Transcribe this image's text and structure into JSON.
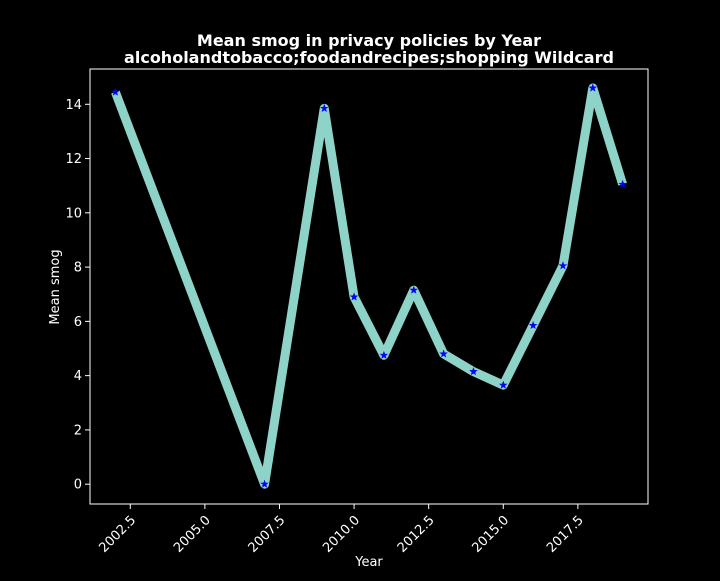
{
  "chart_data": {
    "type": "line",
    "title": "Mean smog in privacy policies by Year",
    "subtitle": "alcoholandtobacco;foodandrecipes;shopping Wildcard",
    "xlabel": "Year",
    "ylabel": "Mean smog",
    "xlim": [
      2001.15,
      2019.85
    ],
    "ylim": [
      -0.73,
      15.3
    ],
    "x_ticks": [
      "2002.5",
      "2005.0",
      "2007.5",
      "2010.0",
      "2012.5",
      "2015.0",
      "2017.5"
    ],
    "x_tick_values": [
      2002.5,
      2005.0,
      2007.5,
      2010.0,
      2012.5,
      2015.0,
      2017.5
    ],
    "y_ticks": [
      "0",
      "2",
      "4",
      "6",
      "8",
      "10",
      "12",
      "14"
    ],
    "y_tick_values": [
      0,
      2,
      4,
      6,
      8,
      10,
      12,
      14
    ],
    "grid": false,
    "colors": {
      "background": "#000000",
      "line": "#8dd3c7",
      "marker": "#0000ff",
      "axes": "#ffffff",
      "text": "#ffffff"
    },
    "series": [
      {
        "x": [
          2002,
          2007,
          2009,
          2010,
          2011,
          2012,
          2013,
          2014,
          2015,
          2016,
          2017,
          2018,
          2019
        ],
        "y": [
          14.45,
          0.0,
          13.85,
          6.9,
          4.75,
          7.15,
          4.8,
          4.15,
          3.65,
          5.85,
          8.05,
          14.6,
          11.05
        ]
      }
    ]
  }
}
